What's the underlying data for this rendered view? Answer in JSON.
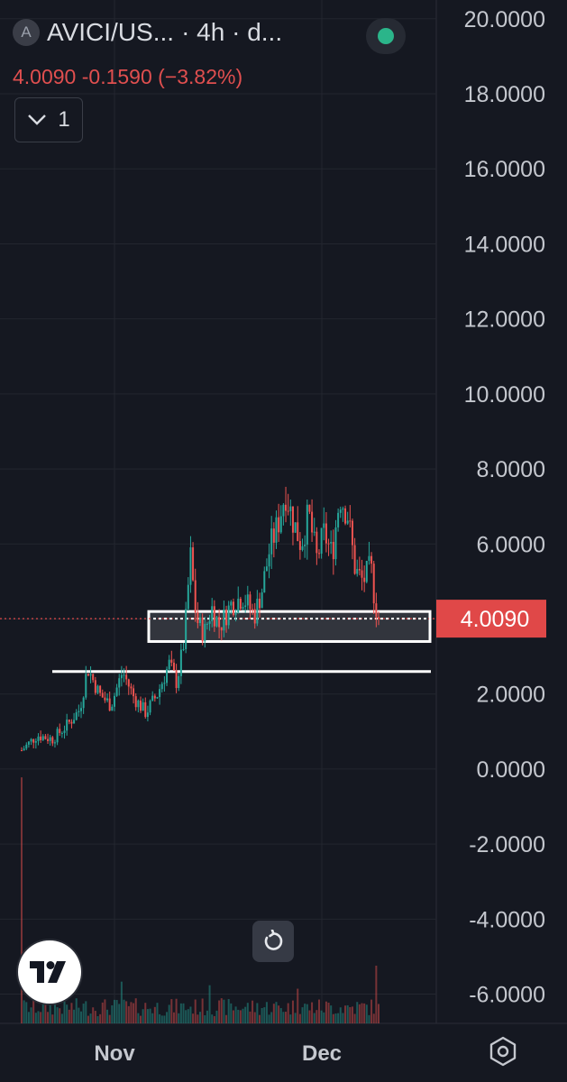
{
  "header": {
    "symbol_badge": "A",
    "title": "AVICI/US...",
    "interval_text": "· 4h · d...",
    "price": "4.0090",
    "change": "-0.1590",
    "change_pct": "(−3.82%)",
    "indicator_count": "1"
  },
  "colors": {
    "background": "#151821",
    "up": "#26a69a",
    "down": "#ef5350",
    "price_tag": "#e04848",
    "axis_text": "#c4c7ce",
    "grid": "#23262f",
    "annotation": "#ffffff"
  },
  "icons": {
    "collapse": "chevron-down-icon",
    "logo": "tradingview-logo-icon",
    "reset": "rotate-ccw-icon",
    "settings": "hexagon-gear-icon"
  },
  "chart_data": {
    "type": "candlestick",
    "ylim": [
      -6.9,
      20.5
    ],
    "y_ticks": [
      "20.0000",
      "18.0000",
      "16.0000",
      "14.0000",
      "12.0000",
      "10.0000",
      "8.0000",
      "6.0000",
      "4.0000",
      "2.0000",
      "0.0000",
      "-2.0000",
      "-4.0000",
      "-6.0000"
    ],
    "y_tick_values": [
      20,
      18,
      16,
      14,
      12,
      10,
      8,
      6,
      4,
      2,
      0,
      -2,
      -4,
      -6
    ],
    "x_labels": [
      "Nov",
      "Dec"
    ],
    "last_price": 4.009,
    "last_price_label": "4.0090",
    "price_path": [
      {
        "t": 0,
        "v": 0.5
      },
      {
        "t": 4,
        "v": 0.9
      },
      {
        "t": 8,
        "v": 0.8
      },
      {
        "t": 12,
        "v": 1.2
      },
      {
        "t": 15,
        "v": 1.6
      },
      {
        "t": 17,
        "v": 2.7
      },
      {
        "t": 20,
        "v": 2.0
      },
      {
        "t": 23,
        "v": 1.7
      },
      {
        "t": 26,
        "v": 2.6
      },
      {
        "t": 29,
        "v": 1.9
      },
      {
        "t": 32,
        "v": 1.5
      },
      {
        "t": 35,
        "v": 2.0
      },
      {
        "t": 38,
        "v": 2.8
      },
      {
        "t": 40,
        "v": 2.3
      },
      {
        "t": 42,
        "v": 3.5
      },
      {
        "t": 43.5,
        "v": 5.7
      },
      {
        "t": 45,
        "v": 4.0
      },
      {
        "t": 47,
        "v": 3.6
      },
      {
        "t": 49,
        "v": 4.3
      },
      {
        "t": 51,
        "v": 3.8
      },
      {
        "t": 54,
        "v": 4.4
      },
      {
        "t": 57,
        "v": 4.6
      },
      {
        "t": 60,
        "v": 4.1
      },
      {
        "t": 62,
        "v": 4.8
      },
      {
        "t": 64,
        "v": 5.9
      },
      {
        "t": 66,
        "v": 6.5
      },
      {
        "t": 68,
        "v": 7.4
      },
      {
        "t": 70,
        "v": 6.6
      },
      {
        "t": 72,
        "v": 6.0
      },
      {
        "t": 74,
        "v": 6.8
      },
      {
        "t": 76,
        "v": 5.6
      },
      {
        "t": 78,
        "v": 6.3
      },
      {
        "t": 80,
        "v": 5.7
      },
      {
        "t": 82,
        "v": 7.3
      },
      {
        "t": 84,
        "v": 6.8
      },
      {
        "t": 86,
        "v": 5.3
      },
      {
        "t": 88,
        "v": 5.0
      },
      {
        "t": 90,
        "v": 5.4
      },
      {
        "t": 91,
        "v": 4.5
      },
      {
        "t": 92,
        "v": 4.0
      }
    ],
    "annotations": [
      {
        "type": "rectangle",
        "y_top": 4.2,
        "y_bottom": 3.4,
        "fill": "#32353d"
      },
      {
        "type": "horizontal_line",
        "y": 2.6
      }
    ]
  }
}
